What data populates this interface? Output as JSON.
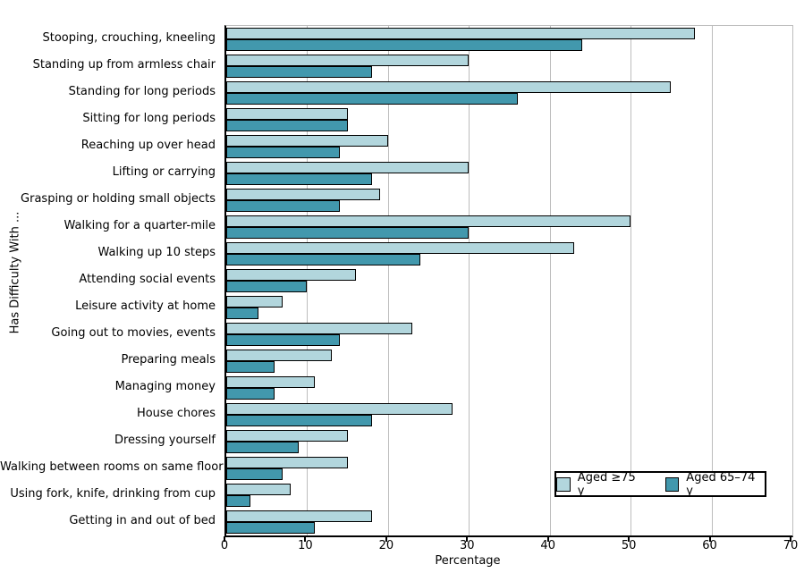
{
  "chart_data": {
    "type": "bar",
    "orientation": "horizontal",
    "title": "",
    "ylabel": "Has Difficulty With ...",
    "xlabel": "Percentage",
    "xlim": [
      0,
      70
    ],
    "x_ticks": [
      0,
      10,
      20,
      30,
      40,
      50,
      60,
      70
    ],
    "grid": "vertical",
    "legend_position": "bottom-right",
    "categories": [
      "Stooping, crouching, kneeling",
      "Standing up from armless chair",
      "Standing for long periods",
      "Sitting for long periods",
      "Reaching up over head",
      "Lifting or carrying",
      "Grasping or holding small objects",
      "Walking for a quarter-mile",
      "Walking up 10 steps",
      "Attending social events",
      "Leisure activity at home",
      "Going out to movies, events",
      "Preparing meals",
      "Managing money",
      "House chores",
      "Dressing yourself",
      "Walking between rooms on same floor",
      "Using fork, knife, drinking from cup",
      "Getting in and out of bed"
    ],
    "series": [
      {
        "name": "Aged ≥75 y",
        "color": "#b2d6dd",
        "values": [
          58,
          30,
          55,
          15,
          20,
          30,
          19,
          50,
          43,
          16,
          7,
          23,
          13,
          11,
          28,
          15,
          15,
          8,
          18
        ]
      },
      {
        "name": "Aged 65–74 y",
        "color": "#4298ad",
        "values": [
          44,
          18,
          36,
          15,
          14,
          18,
          14,
          30,
          24,
          10,
          4,
          14,
          6,
          6,
          18,
          9,
          7,
          3,
          11
        ]
      }
    ]
  }
}
